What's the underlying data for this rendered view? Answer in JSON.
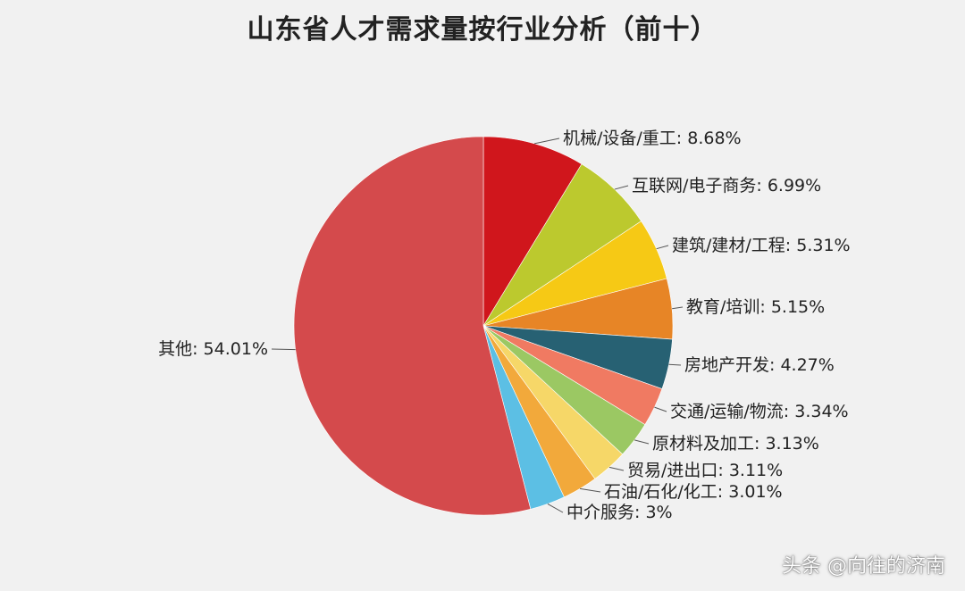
{
  "chart_data": {
    "type": "pie",
    "title": "山东省人才需求量按行业分析（前十）",
    "slices": [
      {
        "label": "机械/设备/重工",
        "value": 8.68,
        "display": "机械/设备/重工: 8.68%",
        "color": "#d0161c"
      },
      {
        "label": "互联网/电子商务",
        "value": 6.99,
        "display": "互联网/电子商务: 6.99%",
        "color": "#bcc92e"
      },
      {
        "label": "建筑/建材/工程",
        "value": 5.31,
        "display": "建筑/建材/工程: 5.31%",
        "color": "#f6c915"
      },
      {
        "label": "教育/培训",
        "value": 5.15,
        "display": "教育/培训: 5.15%",
        "color": "#e78526"
      },
      {
        "label": "房地产开发",
        "value": 4.27,
        "display": "房地产开发: 4.27%",
        "color": "#276173"
      },
      {
        "label": "交通/运输/物流",
        "value": 3.34,
        "display": "交通/运输/物流: 3.34%",
        "color": "#f07a62"
      },
      {
        "label": "原材料及加工",
        "value": 3.13,
        "display": "原材料及加工: 3.13%",
        "color": "#9bc863"
      },
      {
        "label": "贸易/进出口",
        "value": 3.11,
        "display": "贸易/进出口: 3.11%",
        "color": "#f6d768"
      },
      {
        "label": "石油/石化/化工",
        "value": 3.01,
        "display": "石油/石化/化工: 3.01%",
        "color": "#f2a93b"
      },
      {
        "label": "中介服务",
        "value": 3,
        "display": "中介服务: 3%",
        "color": "#5cbfe4"
      },
      {
        "label": "其他",
        "value": 54.01,
        "display": "其他: 54.01%",
        "color": "#d44a4c"
      }
    ]
  },
  "watermark": "头条 @向往的济南"
}
